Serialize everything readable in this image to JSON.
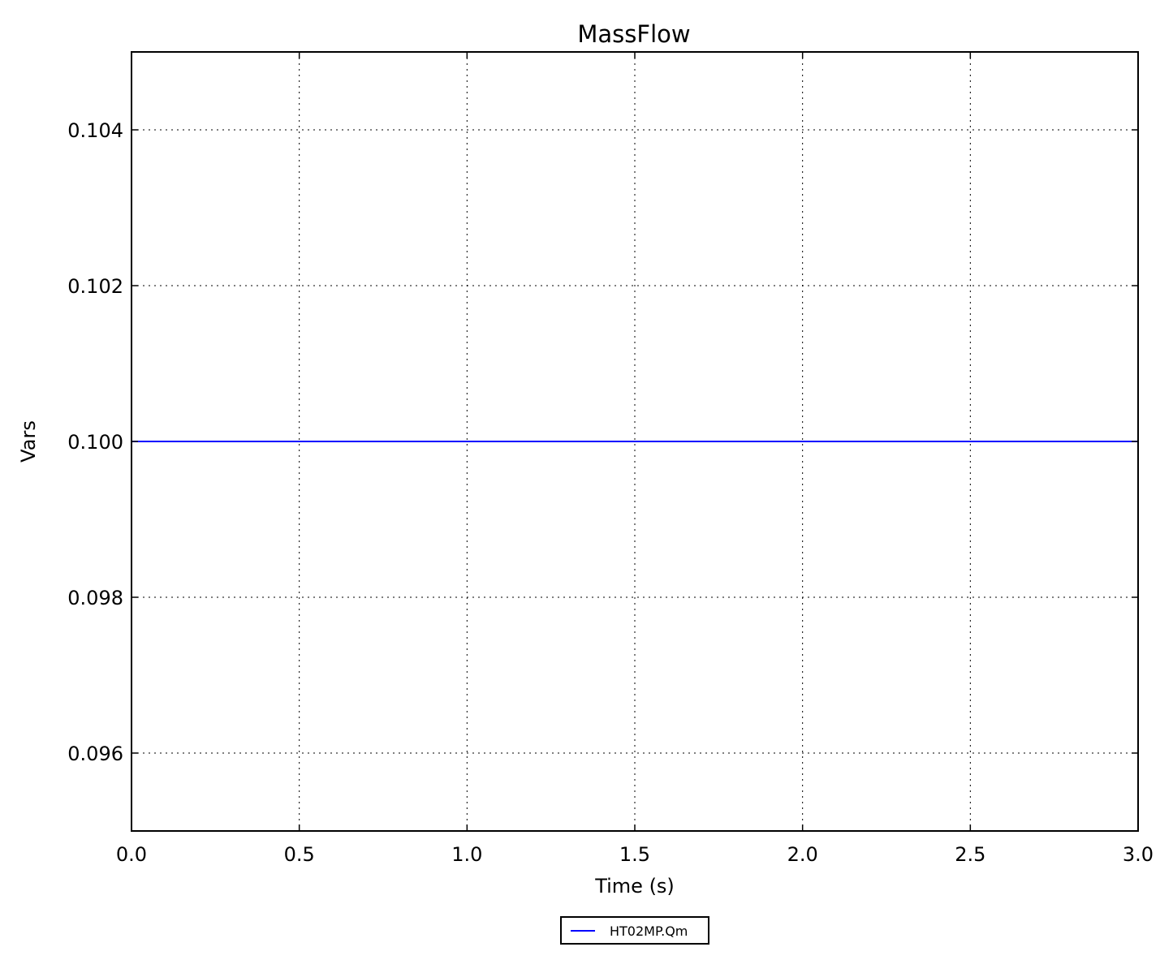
{
  "chart_data": {
    "type": "line",
    "title": "MassFlow",
    "xlabel": "Time (s)",
    "ylabel": "Vars",
    "xlim": [
      0.0,
      3.0
    ],
    "ylim": [
      0.095,
      0.105
    ],
    "xticks": [
      "0.0",
      "0.5",
      "1.0",
      "1.5",
      "2.0",
      "2.5",
      "3.0"
    ],
    "yticks": [
      "0.096",
      "0.098",
      "0.100",
      "0.102",
      "0.104"
    ],
    "grid": true,
    "legend_position": "bottom-center-outside",
    "series": [
      {
        "name": "HT02MP.Qm",
        "color": "#0000ff",
        "x": [
          0.0,
          3.0
        ],
        "y": [
          0.1,
          0.1
        ]
      }
    ]
  }
}
